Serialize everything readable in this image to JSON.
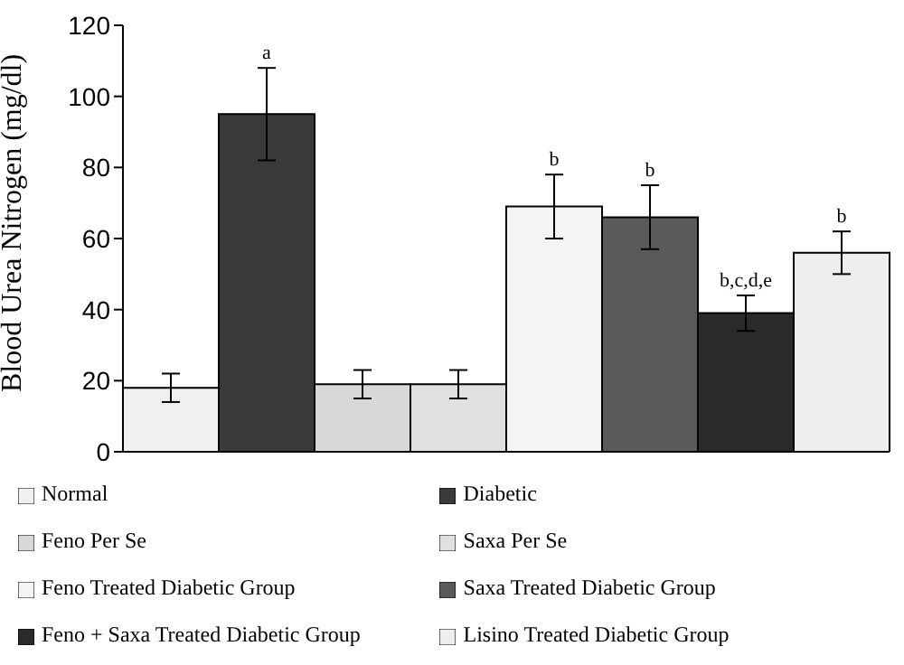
{
  "chart_data": {
    "type": "bar",
    "ylabel": "Blood Urea Nitrogen (mg/dl)",
    "categories": [
      null
    ],
    "series": [
      {
        "name": "Normal",
        "color": "#f0f0f0",
        "values": [
          18
        ],
        "errors": [
          4
        ]
      },
      {
        "name": "Diabetic",
        "color": "#3a3a3a",
        "values": [
          95
        ],
        "errors": [
          13
        ]
      },
      {
        "name": "Feno Per Se",
        "color": "#d8d8d8",
        "values": [
          19
        ],
        "errors": [
          4
        ]
      },
      {
        "name": "Saxa Per Se",
        "color": "#e0e0e0",
        "values": [
          19
        ],
        "errors": [
          4
        ]
      },
      {
        "name": "Feno Treated Diabetic Group",
        "color": "#f4f4f4",
        "values": [
          69
        ],
        "errors": [
          9
        ]
      },
      {
        "name": "Saxa Treated Diabetic Group",
        "color": "#5a5a5a",
        "values": [
          66
        ],
        "errors": [
          9
        ]
      },
      {
        "name": "Feno + Saxa Treated Diabetic Group",
        "color": "#2a2a2a",
        "values": [
          39
        ],
        "errors": [
          5
        ]
      },
      {
        "name": "Lisino Treated Diabetic Group",
        "color": "#eeeeee",
        "values": [
          56
        ],
        "errors": [
          6
        ]
      }
    ],
    "ylim": [
      0,
      120
    ],
    "yticks": [
      0,
      20,
      40,
      60,
      80,
      100,
      120
    ],
    "annotations": [
      "a",
      "b",
      "b",
      "b,c,d,e",
      "b"
    ],
    "legend": "bottom",
    "tick_labels": "y"
  }
}
